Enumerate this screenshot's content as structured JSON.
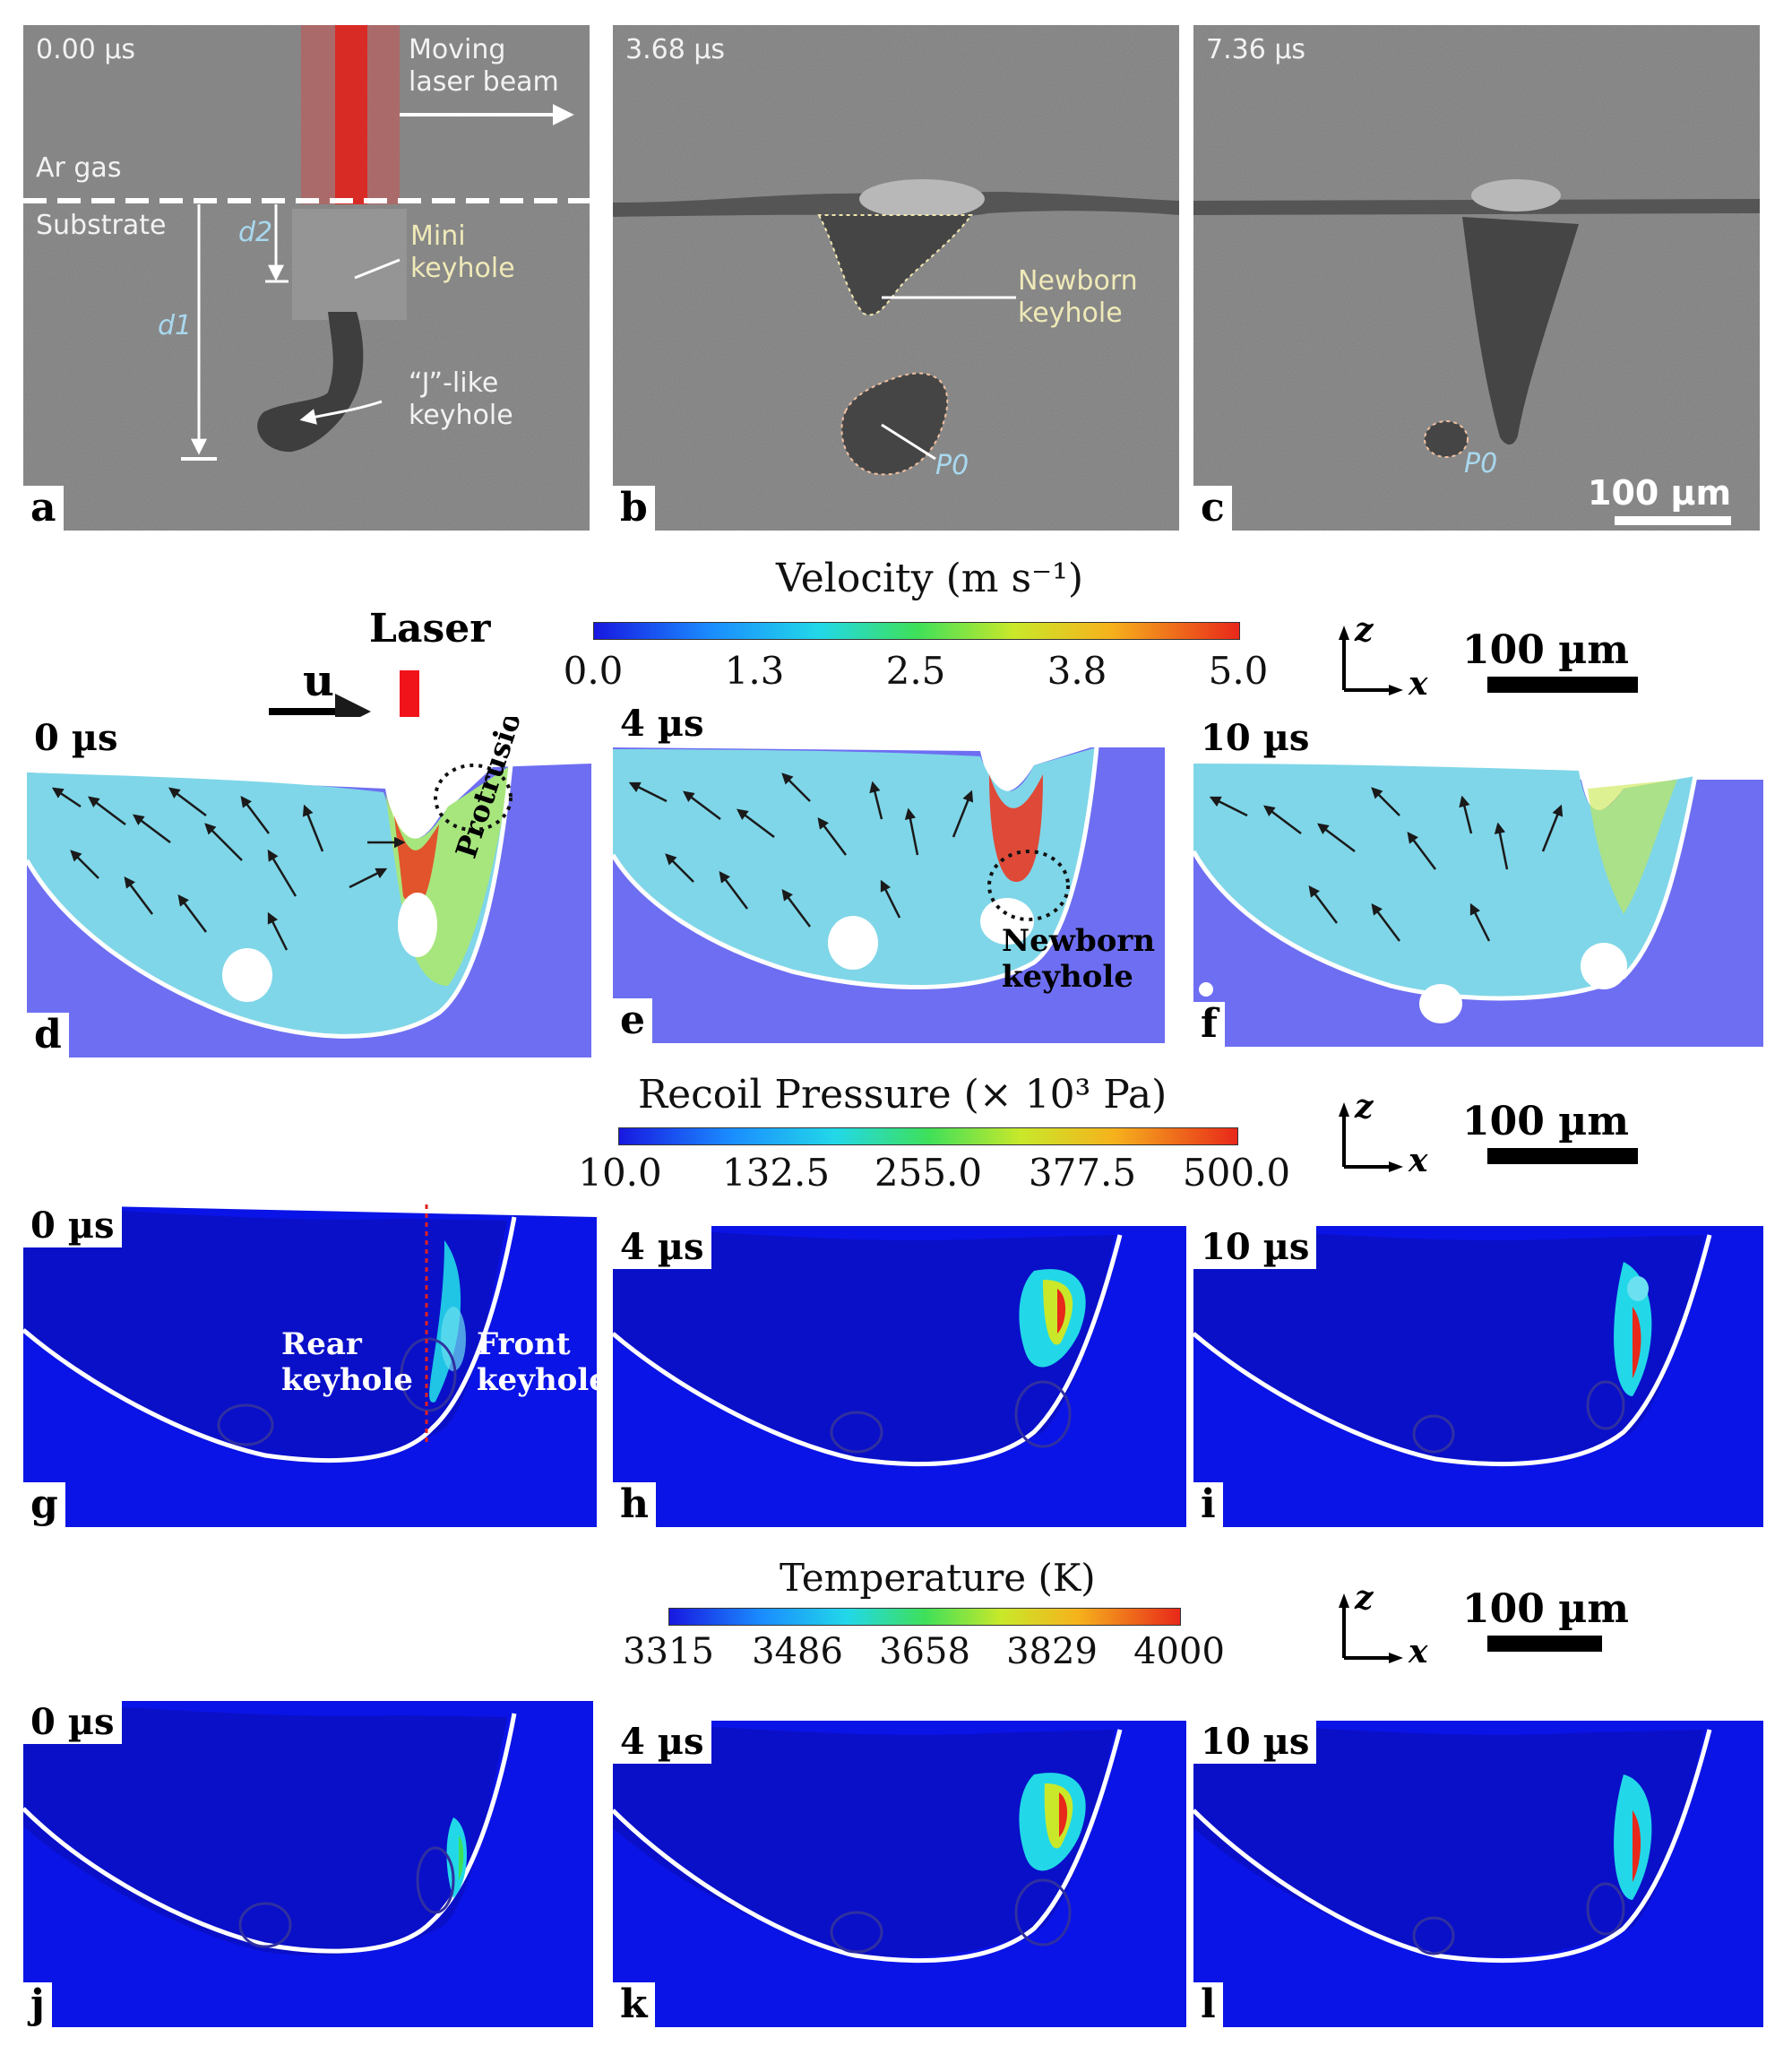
{
  "row1": {
    "a": {
      "label": "a",
      "time": "0.00 µs",
      "moving_laser": [
        "Moving",
        "laser beam"
      ],
      "ar_gas": "Ar gas",
      "substrate": "Substrate",
      "d2": "d2",
      "d1": "d1",
      "mini_keyhole": [
        "Mini",
        "keyhole"
      ],
      "j_keyhole": [
        "“J”-like",
        "keyhole"
      ]
    },
    "b": {
      "label": "b",
      "time": "3.68 µs",
      "newborn": [
        "Newborn",
        "keyhole"
      ],
      "p0": "P0"
    },
    "c": {
      "label": "c",
      "time": "7.36 µs",
      "p0": "P0",
      "scale": "100 µm"
    }
  },
  "velocity": {
    "title": "Velocity (m s⁻¹)",
    "ticks": [
      "0.0",
      "1.3",
      "2.5",
      "3.8",
      "5.0"
    ],
    "laser": "Laser",
    "u": "u",
    "scale": "100 µm",
    "axis_z": "z",
    "axis_x": "x",
    "panels": [
      {
        "label": "d",
        "time": "0 µs",
        "protrusion": "Protrusion"
      },
      {
        "label": "e",
        "time": "4 µs",
        "newborn": [
          "Newborn",
          "keyhole"
        ]
      },
      {
        "label": "f",
        "time": "10 µs"
      }
    ]
  },
  "pressure": {
    "title": "Recoil Pressure (× 10³ Pa)",
    "ticks": [
      "10.0",
      "132.5",
      "255.0",
      "377.5",
      "500.0"
    ],
    "scale": "100 µm",
    "axis_z": "z",
    "axis_x": "x",
    "panels": [
      {
        "label": "g",
        "time": "0 µs",
        "rear": [
          "Rear",
          "keyhole"
        ],
        "front": [
          "Front",
          "keyhole"
        ]
      },
      {
        "label": "h",
        "time": "4 µs"
      },
      {
        "label": "i",
        "time": "10 µs"
      }
    ]
  },
  "temperature": {
    "title": "Temperature (K)",
    "ticks": [
      "3315",
      "3486",
      "3658",
      "3829",
      "4000"
    ],
    "scale": "100 µm",
    "axis_z": "z",
    "axis_x": "x",
    "panels": [
      {
        "label": "j",
        "time": "0 µs"
      },
      {
        "label": "k",
        "time": "4 µs"
      },
      {
        "label": "l",
        "time": "10 µs"
      }
    ]
  },
  "colors": {
    "substrate_sim": "#6e6ef2",
    "field_bg": "#0b14e6",
    "melt_pool": "#7fd6e8",
    "xray": "#7c7c7c"
  }
}
